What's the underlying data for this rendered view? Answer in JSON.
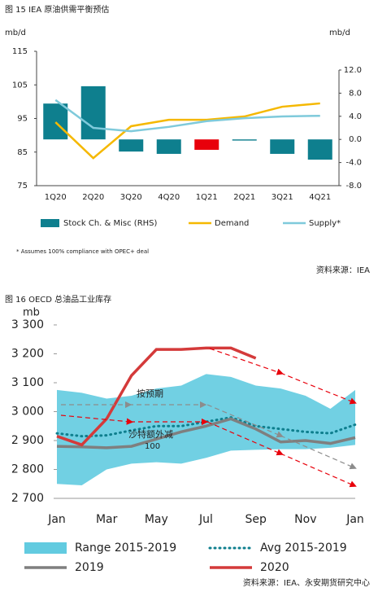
{
  "chart_data": [
    {
      "type": "bar",
      "title": "图 15 IEA 原油供需平衡预估",
      "y_label": "mb/d",
      "y2_label": "mb/d",
      "categories": [
        "1Q20",
        "2Q20",
        "3Q20",
        "4Q20",
        "1Q21",
        "2Q21",
        "3Q21",
        "4Q21"
      ],
      "ylim": [
        75,
        115
      ],
      "yticks": [
        75,
        85,
        95,
        105,
        115
      ],
      "y2lim": [
        -8,
        12
      ],
      "y2ticks": [
        {
          "value": -8,
          "label": "-8.0"
        },
        {
          "value": -4,
          "label": "-4.0"
        },
        {
          "value": 0,
          "label": "0.0"
        },
        {
          "value": 4,
          "label": "4.0"
        },
        {
          "value": 8,
          "label": "8.0"
        },
        {
          "value": 12,
          "label": "12.0"
        }
      ],
      "series": [
        {
          "name": "Stock Ch. & Misc (RHS)",
          "type": "bar",
          "axis": "y2",
          "color": "#0e7f8e",
          "colors": [
            "#0e7f8e",
            "#0e7f8e",
            "#0e7f8e",
            "#0e7f8e",
            "#e8000b",
            "#0e7f8e",
            "#0e7f8e",
            "#0e7f8e"
          ],
          "values": [
            6.2,
            9.2,
            -2.1,
            -2.5,
            -1.8,
            -0.2,
            -2.5,
            -3.5
          ]
        },
        {
          "name": "Demand",
          "type": "line",
          "color": "#f5b800",
          "values": [
            93.9,
            83.2,
            92.7,
            94.6,
            94.6,
            95.6,
            98.5,
            99.5
          ]
        },
        {
          "name": "Supply*",
          "type": "line",
          "color": "#7fcadb",
          "values": [
            100.5,
            92.2,
            91.2,
            92.5,
            94.2,
            95.1,
            95.6,
            95.8
          ]
        }
      ],
      "footnote": "* Assumes 100% compliance with OPEC+ deal",
      "source": "资料来源：IEA"
    },
    {
      "type": "line",
      "title": "图 16 OECD 总油品工业库存",
      "y_label": "mb",
      "categories": [
        "Jan",
        null,
        "Mar",
        null,
        "May",
        null,
        "Jul",
        null,
        "Sep",
        null,
        "Nov",
        null,
        "Jan"
      ],
      "ylim": [
        2700,
        3300
      ],
      "yticks": [
        {
          "value": 2700,
          "label": "2 700"
        },
        {
          "value": 2800,
          "label": "2 800"
        },
        {
          "value": 2900,
          "label": "2 900"
        },
        {
          "value": 3000,
          "label": "3 000"
        },
        {
          "value": 3100,
          "label": "3 100"
        },
        {
          "value": 3200,
          "label": "3 200"
        },
        {
          "value": 3300,
          "label": "3 300"
        }
      ],
      "series": [
        {
          "name": "Range 2015-2019",
          "type": "band",
          "color": "#62cbe0",
          "values": [
            3075,
            3065,
            3045,
            3055,
            3080,
            3090,
            3130,
            3120,
            3090,
            3080,
            3055,
            3010,
            3075
          ],
          "lower": [
            2750,
            2745,
            2800,
            2820,
            2825,
            2820,
            2840,
            2865,
            2868,
            2870,
            2870,
            2875,
            2885
          ]
        },
        {
          "name": "Avg 2015-2019",
          "type": "dotted",
          "color": "#0e7f8e",
          "values": [
            2925,
            2915,
            2918,
            2935,
            2950,
            2950,
            2965,
            2980,
            2950,
            2940,
            2930,
            2925,
            2955
          ]
        },
        {
          "name": "2019",
          "type": "line",
          "color": "#7f7f7f",
          "values": [
            2880,
            2878,
            2875,
            2880,
            2905,
            2930,
            2950,
            2975,
            2940,
            2895,
            2900,
            2890,
            2910
          ]
        },
        {
          "name": "2020",
          "type": "line",
          "color": "#d43a3a",
          "values": [
            2915,
            2885,
            2975,
            3125,
            3215,
            3215,
            3220,
            3220,
            3185,
            null,
            null,
            null,
            null
          ]
        }
      ],
      "annotations": [
        "按预期",
        "沙特额外减",
        "100"
      ],
      "source": "资料来源：IEA、永安期货研究中心"
    }
  ]
}
